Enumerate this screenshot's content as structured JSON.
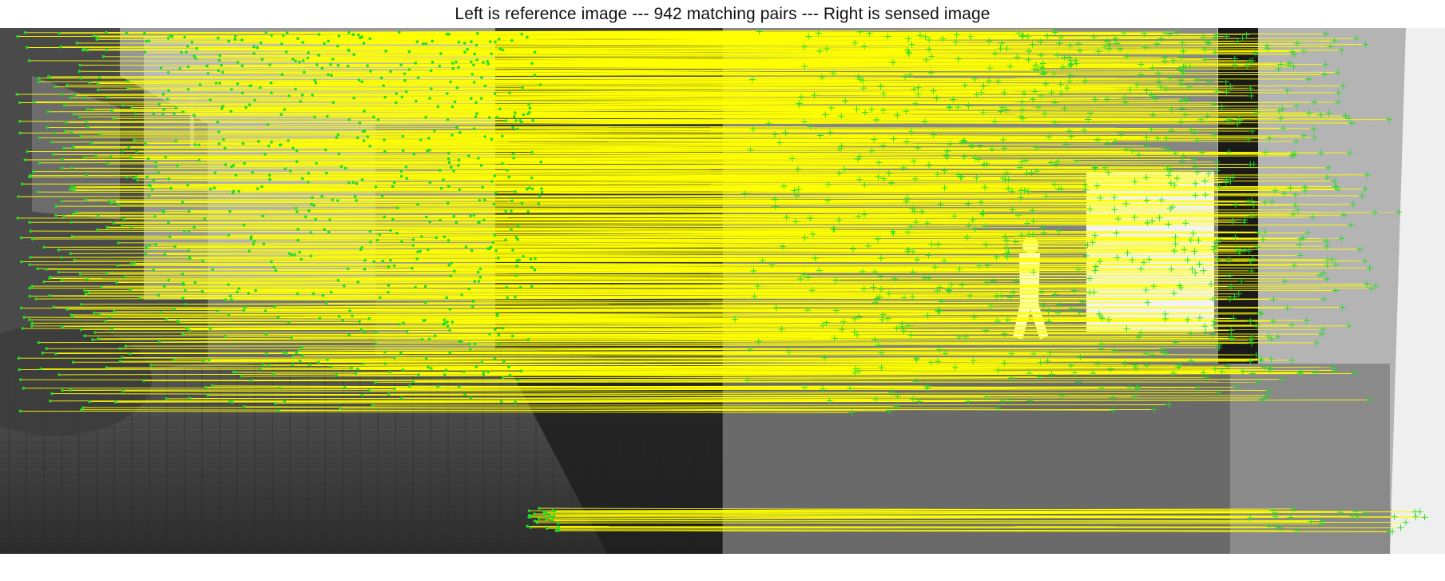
{
  "figure": {
    "title": "Left is reference image --- 942 matching pairs --- Right is sensed image",
    "left_image_role": "reference image",
    "right_image_role": "sensed image",
    "matching_pairs": 942
  },
  "colors": {
    "match_line": "#ffff00",
    "reference_point": "#22dd22",
    "sensed_marker": "#22dd22",
    "background": "#ffffff"
  }
}
